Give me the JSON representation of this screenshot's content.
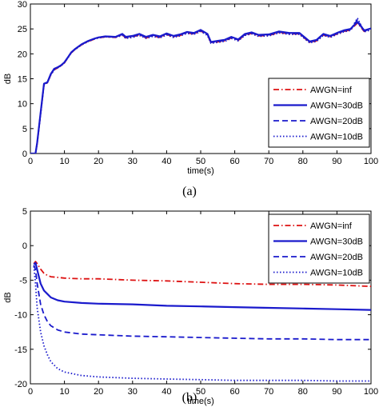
{
  "chart_data": [
    {
      "type": "line",
      "caption": "(a)",
      "xlabel": "time(s)",
      "ylabel": "dB",
      "xlim": [
        0,
        100
      ],
      "ylim": [
        0,
        30
      ],
      "xticks": [
        0,
        10,
        20,
        30,
        40,
        50,
        60,
        70,
        80,
        90,
        100
      ],
      "yticks": [
        0,
        5,
        10,
        15,
        20,
        25,
        30
      ],
      "grid": false,
      "legend_position": "bottom-right",
      "series": [
        {
          "name": "AWGN=inf",
          "color": "#dd1111",
          "style": "dashdot",
          "x": [
            0,
            1.5,
            2,
            3,
            4,
            5,
            6,
            7,
            8,
            9,
            10,
            11,
            12,
            13,
            15,
            17,
            19,
            20,
            22,
            25,
            27,
            28,
            30,
            32,
            34,
            36,
            38,
            40,
            42,
            44,
            46,
            48,
            50,
            52,
            53,
            55,
            57,
            59,
            61,
            63,
            65,
            67,
            70,
            73,
            76,
            79,
            82,
            84,
            86,
            88,
            90,
            92,
            94,
            96,
            98,
            100
          ],
          "y": [
            0,
            0,
            2,
            8,
            13.8,
            14.2,
            15.8,
            16.8,
            17.2,
            17.6,
            18.2,
            19.2,
            20.2,
            20.8,
            21.8,
            22.5,
            23.0,
            23.2,
            23.4,
            23.3,
            23.8,
            23.2,
            23.4,
            23.8,
            23.2,
            23.6,
            23.3,
            23.9,
            23.4,
            23.7,
            24.2,
            24.0,
            24.6,
            23.8,
            22.2,
            22.4,
            22.6,
            23.2,
            22.7,
            23.8,
            24.1,
            23.6,
            23.7,
            24.3,
            24.0,
            24.0,
            22.3,
            22.6,
            23.8,
            23.4,
            24.0,
            24.5,
            24.8,
            26.2,
            24.5,
            24.9
          ]
        },
        {
          "name": "AWGN=30dB",
          "color": "#1a1acc",
          "style": "solid",
          "x": [
            0,
            1.5,
            2,
            3,
            4,
            5,
            6,
            7,
            8,
            9,
            10,
            11,
            12,
            13,
            15,
            17,
            19,
            20,
            22,
            25,
            27,
            28,
            30,
            32,
            34,
            36,
            38,
            40,
            42,
            44,
            46,
            48,
            50,
            52,
            53,
            55,
            57,
            59,
            61,
            63,
            65,
            67,
            70,
            73,
            76,
            79,
            82,
            84,
            86,
            88,
            90,
            92,
            94,
            96,
            98,
            100
          ],
          "y": [
            0,
            0,
            2.2,
            8.2,
            14.0,
            14.3,
            16.0,
            17.0,
            17.3,
            17.7,
            18.3,
            19.3,
            20.3,
            20.9,
            21.9,
            22.6,
            23.1,
            23.3,
            23.5,
            23.4,
            24.0,
            23.4,
            23.6,
            24.0,
            23.4,
            23.8,
            23.5,
            24.1,
            23.6,
            23.9,
            24.4,
            24.2,
            24.8,
            24.0,
            22.4,
            22.6,
            22.8,
            23.4,
            22.9,
            24.0,
            24.3,
            23.8,
            23.9,
            24.5,
            24.2,
            24.2,
            22.5,
            22.8,
            24.0,
            23.6,
            24.2,
            24.7,
            25.0,
            26.4,
            24.7,
            25.1
          ]
        },
        {
          "name": "AWGN=20dB",
          "color": "#1a1acc",
          "style": "dashed",
          "x": [
            0,
            1.5,
            2,
            3,
            4,
            5,
            6,
            7,
            8,
            9,
            10,
            11,
            12,
            13,
            15,
            17,
            19,
            20,
            22,
            25,
            27,
            28,
            30,
            32,
            34,
            36,
            38,
            40,
            42,
            44,
            46,
            48,
            50,
            52,
            53,
            55,
            57,
            59,
            61,
            63,
            65,
            67,
            70,
            73,
            76,
            79,
            82,
            84,
            86,
            88,
            90,
            92,
            94,
            96,
            98,
            100
          ],
          "y": [
            0,
            0,
            2.1,
            8.1,
            13.9,
            14.3,
            15.9,
            16.9,
            17.3,
            17.7,
            18.3,
            19.3,
            20.3,
            20.9,
            21.9,
            22.6,
            23.1,
            23.3,
            23.5,
            23.4,
            23.9,
            23.3,
            23.5,
            23.9,
            23.3,
            23.7,
            23.4,
            24.0,
            23.5,
            23.8,
            24.3,
            24.1,
            24.7,
            23.9,
            22.3,
            22.5,
            22.7,
            23.3,
            22.8,
            23.9,
            24.2,
            23.7,
            23.8,
            24.4,
            24.1,
            24.1,
            22.4,
            22.7,
            23.9,
            23.5,
            24.1,
            24.6,
            24.9,
            26.8,
            24.6,
            25.0
          ]
        },
        {
          "name": "AWGN=10dB",
          "color": "#1a1acc",
          "style": "dotted",
          "x": [
            0,
            1.5,
            2,
            3,
            4,
            5,
            6,
            7,
            8,
            9,
            10,
            11,
            12,
            13,
            15,
            17,
            19,
            20,
            22,
            25,
            27,
            28,
            30,
            32,
            34,
            36,
            38,
            40,
            42,
            44,
            46,
            48,
            50,
            52,
            53,
            55,
            57,
            59,
            61,
            63,
            65,
            67,
            70,
            73,
            76,
            79,
            82,
            84,
            86,
            88,
            90,
            92,
            94,
            96,
            98,
            100
          ],
          "y": [
            0,
            0,
            2.1,
            8.0,
            13.8,
            14.2,
            15.8,
            16.8,
            17.2,
            17.6,
            18.2,
            19.2,
            20.2,
            20.8,
            21.8,
            22.5,
            23.0,
            23.2,
            23.4,
            23.3,
            23.7,
            23.1,
            23.3,
            23.7,
            23.1,
            23.5,
            23.2,
            23.8,
            23.3,
            23.6,
            24.1,
            23.9,
            24.5,
            23.7,
            22.1,
            22.3,
            22.5,
            23.1,
            22.6,
            23.7,
            24.0,
            23.5,
            23.6,
            24.2,
            23.9,
            23.9,
            22.2,
            22.5,
            23.7,
            23.3,
            23.9,
            24.4,
            24.7,
            27.2,
            24.4,
            24.8
          ]
        }
      ]
    },
    {
      "type": "line",
      "caption": "(b)",
      "xlabel": "time(s)",
      "ylabel": "dB",
      "xlim": [
        0,
        100
      ],
      "ylim": [
        -20,
        5
      ],
      "xticks": [
        0,
        10,
        20,
        30,
        40,
        50,
        60,
        70,
        80,
        90,
        100
      ],
      "yticks": [
        -20,
        -15,
        -10,
        -5,
        0,
        5
      ],
      "grid": false,
      "legend_position": "top-right",
      "series": [
        {
          "name": "AWGN=inf",
          "color": "#dd1111",
          "style": "dashdot",
          "x": [
            1,
            1.5,
            2,
            3,
            4,
            5,
            6,
            8,
            10,
            15,
            20,
            30,
            40,
            50,
            60,
            70,
            80,
            90,
            100
          ],
          "y": [
            -2.6,
            -2.3,
            -2.6,
            -3.4,
            -4.0,
            -4.3,
            -4.5,
            -4.6,
            -4.7,
            -4.8,
            -4.8,
            -5.0,
            -5.1,
            -5.3,
            -5.5,
            -5.6,
            -5.6,
            -5.7,
            -5.9
          ]
        },
        {
          "name": "AWGN=30dB",
          "color": "#1a1acc",
          "style": "solid",
          "x": [
            1,
            1.5,
            2,
            3,
            4,
            5,
            6,
            8,
            10,
            15,
            20,
            30,
            40,
            50,
            60,
            70,
            80,
            90,
            100
          ],
          "y": [
            -2.7,
            -2.5,
            -3.5,
            -5.5,
            -6.5,
            -7.0,
            -7.5,
            -7.9,
            -8.1,
            -8.3,
            -8.4,
            -8.5,
            -8.7,
            -8.8,
            -8.9,
            -9.0,
            -9.1,
            -9.2,
            -9.3
          ]
        },
        {
          "name": "AWGN=20dB",
          "color": "#1a1acc",
          "style": "dashed",
          "x": [
            1,
            1.5,
            2,
            3,
            4,
            5,
            6,
            8,
            10,
            15,
            20,
            30,
            40,
            50,
            60,
            70,
            80,
            90,
            100
          ],
          "y": [
            -2.8,
            -3.5,
            -5.5,
            -8.5,
            -10.0,
            -11.0,
            -11.6,
            -12.2,
            -12.5,
            -12.8,
            -12.9,
            -13.1,
            -13.2,
            -13.3,
            -13.4,
            -13.5,
            -13.5,
            -13.6,
            -13.6
          ]
        },
        {
          "name": "AWGN=10dB",
          "color": "#1a1acc",
          "style": "dotted",
          "x": [
            1,
            1.5,
            2,
            3,
            4,
            5,
            6,
            8,
            10,
            15,
            20,
            30,
            40,
            50,
            60,
            70,
            80,
            90,
            100
          ],
          "y": [
            -3.0,
            -5.5,
            -9.0,
            -12.5,
            -14.5,
            -15.8,
            -16.8,
            -17.8,
            -18.3,
            -18.8,
            -19.0,
            -19.2,
            -19.3,
            -19.4,
            -19.5,
            -19.5,
            -19.5,
            -19.6,
            -19.6
          ]
        }
      ]
    }
  ]
}
